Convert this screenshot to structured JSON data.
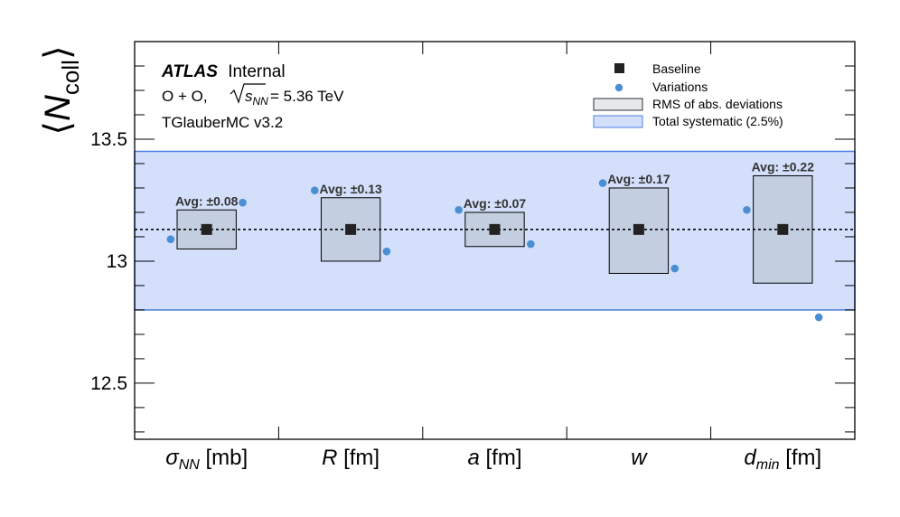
{
  "chart_data": {
    "type": "scatter",
    "ylabel": "⟨N_coll⟩",
    "ylim": [
      12.27,
      13.9
    ],
    "yticks": [
      12.5,
      13,
      13.5
    ],
    "ytick_labels": [
      "12.5",
      "13",
      "13.5"
    ],
    "categories": [
      {
        "base": "σ",
        "sub": "NN",
        "italic": true,
        "unit": "[mb]"
      },
      {
        "base": "R",
        "sub": "",
        "italic": true,
        "unit": "[fm]"
      },
      {
        "base": "a",
        "sub": "",
        "italic": true,
        "unit": "[fm]"
      },
      {
        "base": "w",
        "sub": "",
        "italic": true,
        "unit": ""
      },
      {
        "base": "d",
        "sub": "min",
        "italic": true,
        "unit": "[fm]"
      }
    ],
    "baseline": 13.13,
    "total_systematic_band": [
      12.8,
      13.45
    ],
    "rms_boxes": [
      {
        "low": 13.05,
        "high": 13.21,
        "avg_label": "Avg: ±0.08"
      },
      {
        "low": 13.0,
        "high": 13.26,
        "avg_label": "Avg: ±0.13"
      },
      {
        "low": 13.06,
        "high": 13.2,
        "avg_label": "Avg: ±0.07"
      },
      {
        "low": 12.95,
        "high": 13.3,
        "avg_label": "Avg: ±0.17"
      },
      {
        "low": 12.91,
        "high": 13.35,
        "avg_label": "Avg: ±0.22"
      }
    ],
    "variations": [
      {
        "category": 0,
        "offset": -0.25,
        "value": 13.09
      },
      {
        "category": 0,
        "offset": 0.25,
        "value": 13.24
      },
      {
        "category": 1,
        "offset": -0.25,
        "value": 13.29
      },
      {
        "category": 1,
        "offset": 0.25,
        "value": 13.04
      },
      {
        "category": 2,
        "offset": -0.25,
        "value": 13.21
      },
      {
        "category": 2,
        "offset": 0.25,
        "value": 13.07
      },
      {
        "category": 3,
        "offset": -0.25,
        "value": 13.32
      },
      {
        "category": 3,
        "offset": 0.25,
        "value": 12.97
      },
      {
        "category": 4,
        "offset": -0.25,
        "value": 13.21
      },
      {
        "category": 4,
        "offset": 0.25,
        "value": 12.77
      }
    ],
    "legend": {
      "placement": "top-right",
      "entries": [
        {
          "label": "Baseline",
          "kind": "marker-square"
        },
        {
          "label": "Variations",
          "kind": "marker-circle"
        },
        {
          "label": "RMS of abs. deviations",
          "kind": "box-gray"
        },
        {
          "label": "Total systematic (2.5%)",
          "kind": "box-blue"
        }
      ]
    },
    "annotations": {
      "experiment": "ATLAS",
      "status": "Internal",
      "system": "O + O,",
      "energy_symbol": "s",
      "energy_sub": "NN",
      "energy_value": "= 5.36 TeV",
      "generator": "TGlauberMC v3.2"
    },
    "colors": {
      "band_fill": "#d4e0fb",
      "band_edge": "#4a7fe0",
      "box_fill": "#c3cfe0",
      "box_edge": "#000000",
      "variation": "#4a8fd3",
      "baseline": "#222222"
    }
  }
}
